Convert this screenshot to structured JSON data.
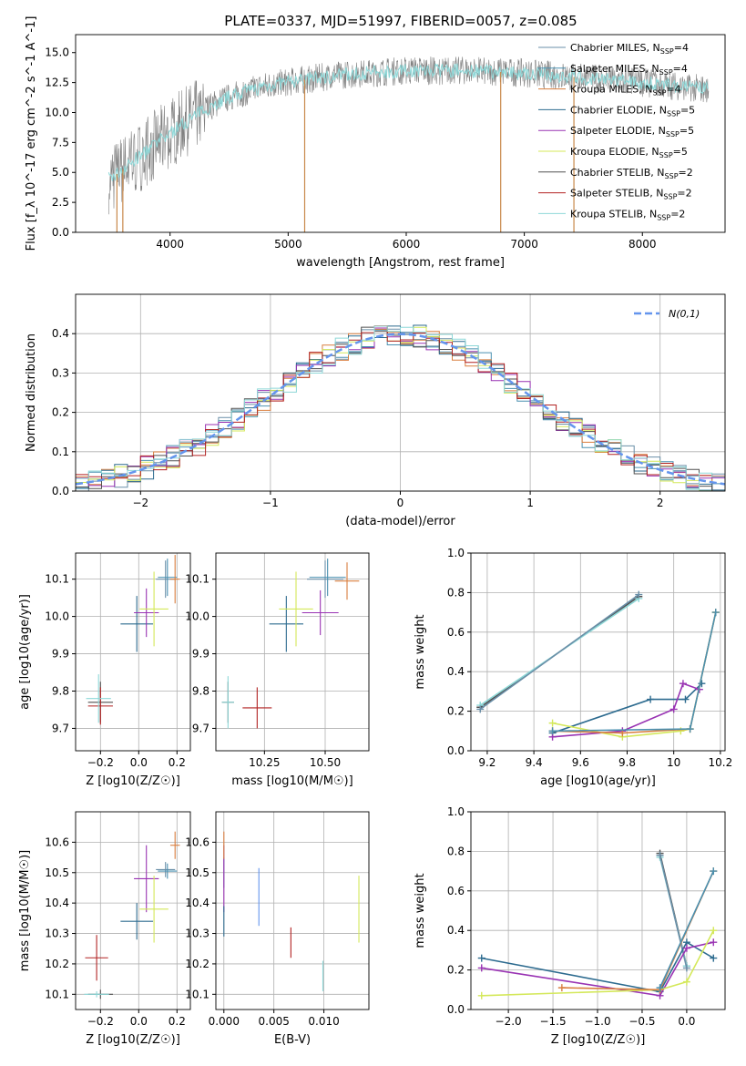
{
  "figure_title": "PLATE=0337, MJD=51997, FIBERID=0057, z=0.085",
  "colors": {
    "Chabrier MILES": "#6a8fa8",
    "Salpeter MILES": "#4a90b0",
    "Kroupa MILES": "#d97f3f",
    "Chabrier ELODIE": "#2d6b8f",
    "Salpeter ELODIE": "#9933b3",
    "Kroupa ELODIE": "#d4e85a",
    "Chabrier STELIB": "#505050",
    "Salpeter STELIB": "#b22222",
    "Kroupa STELIB": "#8ed8d8",
    "normal": "#6495ED",
    "spectrum": "#808080"
  },
  "chart_data": [
    {
      "id": "spectrum",
      "type": "line",
      "title": "PLATE=0337, MJD=51997, FIBERID=0057, z=0.085",
      "xlabel": "wavelength [Angstrom, rest frame]",
      "ylabel": "Flux [f_λ 10^-17 erg cm^-2 s^-1 A^-1]",
      "xlim": [
        3200,
        8700
      ],
      "ylim": [
        0,
        16.5
      ],
      "xticks": [
        4000,
        5000,
        6000,
        7000,
        8000
      ],
      "yticks": [
        0.0,
        2.5,
        5.0,
        7.5,
        10.0,
        12.5,
        15.0
      ],
      "legend": [
        {
          "name": "Chabrier MILES",
          "sub": "SSP",
          "n": "4"
        },
        {
          "name": "Salpeter MILES",
          "sub": "SSP",
          "n": "4"
        },
        {
          "name": "Kroupa MILES",
          "sub": "SSP",
          "n": "4"
        },
        {
          "name": "Chabrier ELODIE",
          "sub": "SSP",
          "n": "5"
        },
        {
          "name": "Salpeter ELODIE",
          "sub": "SSP",
          "n": "5"
        },
        {
          "name": "Kroupa ELODIE",
          "sub": "SSP",
          "n": "5"
        },
        {
          "name": "Chabrier STELIB",
          "sub": "SSP",
          "n": "2"
        },
        {
          "name": "Salpeter STELIB",
          "sub": "SSP",
          "n": "2"
        },
        {
          "name": "Kroupa STELIB",
          "sub": "SSP",
          "n": "2"
        }
      ],
      "continuum": [
        [
          3500,
          4.5
        ],
        [
          3700,
          6.0
        ],
        [
          3900,
          7.5
        ],
        [
          4100,
          9.0
        ],
        [
          4300,
          10.3
        ],
        [
          4500,
          11.3
        ],
        [
          4800,
          12.2
        ],
        [
          5100,
          12.7
        ],
        [
          5500,
          13.2
        ],
        [
          6000,
          13.5
        ],
        [
          6500,
          13.5
        ],
        [
          7000,
          13.3
        ],
        [
          7500,
          12.9
        ],
        [
          8000,
          12.5
        ],
        [
          8500,
          12.0
        ]
      ],
      "dips": [
        [
          5140,
          0
        ],
        [
          6800,
          0
        ],
        [
          7420,
          0
        ],
        [
          3550,
          0
        ],
        [
          3600,
          0
        ]
      ]
    },
    {
      "id": "residuals",
      "type": "bar",
      "xlabel": "(data-model)/error",
      "ylabel": "Normed distribution",
      "xlim": [
        -2.5,
        2.5
      ],
      "ylim": [
        0,
        0.5
      ],
      "xticks": [
        -2,
        -1,
        0,
        1,
        2
      ],
      "yticks": [
        0.0,
        0.1,
        0.2,
        0.3,
        0.4
      ],
      "legend_label": "N(0,1)",
      "bin_width": 0.1
    },
    {
      "id": "age_vs_Z",
      "type": "scatter",
      "xlabel": "Z [log10(Z/Z☉)]",
      "ylabel": "age [log10(age/yr)]",
      "xlim": [
        -0.33,
        0.27
      ],
      "ylim": [
        9.64,
        10.17
      ],
      "xticks": [
        -0.2,
        0.0,
        0.2
      ],
      "xticklabels": [
        "−0.2",
        "0.0",
        "0.2"
      ],
      "yticks": [
        9.7,
        9.8,
        9.9,
        10.0,
        10.1
      ],
      "points": [
        {
          "m": "Chabrier MILES",
          "x": 0.14,
          "y": 10.1,
          "dx": 0.1,
          "dy": 0.1
        },
        {
          "m": "Salpeter MILES",
          "x": 0.15,
          "y": 10.105,
          "dx": 0.1,
          "dy": 0.1
        },
        {
          "m": "Kroupa MILES",
          "x": 0.19,
          "y": 10.1,
          "dx": 0.05,
          "dy": 0.13
        },
        {
          "m": "Chabrier ELODIE",
          "x": -0.01,
          "y": 9.98,
          "dx": 0.17,
          "dy": 0.15
        },
        {
          "m": "Salpeter ELODIE",
          "x": 0.04,
          "y": 10.01,
          "dx": 0.13,
          "dy": 0.13
        },
        {
          "m": "Kroupa ELODIE",
          "x": 0.08,
          "y": 10.02,
          "dx": 0.15,
          "dy": 0.2
        },
        {
          "m": "Chabrier STELIB",
          "x": -0.2,
          "y": 9.77,
          "dx": 0.13,
          "dy": 0.11
        },
        {
          "m": "Salpeter STELIB",
          "x": -0.2,
          "y": 9.76,
          "dx": 0.13,
          "dy": 0.1
        },
        {
          "m": "Kroupa STELIB",
          "x": -0.21,
          "y": 9.78,
          "dx": 0.13,
          "dy": 0.13
        }
      ]
    },
    {
      "id": "age_vs_mass",
      "type": "scatter",
      "xlabel": "mass [log10(M/M☉)]",
      "ylabel": "",
      "xlim": [
        10.05,
        10.68
      ],
      "ylim": [
        9.64,
        10.17
      ],
      "xticks": [
        10.25,
        10.5
      ],
      "xticklabels": [
        "10.25",
        "10.50"
      ],
      "yticks": [
        9.7,
        9.8,
        9.9,
        10.0,
        10.1
      ],
      "points": [
        {
          "m": "Chabrier MILES",
          "x": 10.5,
          "y": 10.1,
          "dx": 0.15,
          "dy": 0.1
        },
        {
          "m": "Salpeter MILES",
          "x": 10.51,
          "y": 10.105,
          "dx": 0.15,
          "dy": 0.1
        },
        {
          "m": "Kroupa MILES",
          "x": 10.59,
          "y": 10.095,
          "dx": 0.1,
          "dy": 0.1
        },
        {
          "m": "Chabrier ELODIE",
          "x": 10.34,
          "y": 9.98,
          "dx": 0.14,
          "dy": 0.15
        },
        {
          "m": "Salpeter ELODIE",
          "x": 10.48,
          "y": 10.01,
          "dx": 0.15,
          "dy": 0.12
        },
        {
          "m": "Kroupa ELODIE",
          "x": 10.38,
          "y": 10.02,
          "dx": 0.14,
          "dy": 0.2
        },
        {
          "m": "Chabrier STELIB",
          "x": 10.1,
          "y": 9.77,
          "dx": 0.05,
          "dy": 0.11
        },
        {
          "m": "Salpeter STELIB",
          "x": 10.22,
          "y": 9.755,
          "dx": 0.12,
          "dy": 0.11
        },
        {
          "m": "Kroupa STELIB",
          "x": 10.1,
          "y": 9.77,
          "dx": 0.05,
          "dy": 0.14
        }
      ]
    },
    {
      "id": "massweight_vs_age",
      "type": "line",
      "xlabel": "age [log10(age/yr)]",
      "ylabel": "mass weight",
      "xlim": [
        9.13,
        10.22
      ],
      "ylim": [
        0,
        1.0
      ],
      "xticks": [
        9.2,
        9.4,
        9.6,
        9.8,
        10.0,
        10.2
      ],
      "yticks": [
        0.0,
        0.2,
        0.4,
        0.6,
        0.8,
        1.0
      ],
      "series": [
        {
          "m": "Chabrier STELIB",
          "x": [
            9.17,
            9.85
          ],
          "y": [
            0.22,
            0.78
          ]
        },
        {
          "m": "Kroupa STELIB",
          "x": [
            9.17,
            9.85
          ],
          "y": [
            0.23,
            0.77
          ]
        },
        {
          "m": "Chabrier MILES",
          "x": [
            9.17,
            9.85
          ],
          "y": [
            0.21,
            0.79
          ]
        },
        {
          "m": "Chabrier ELODIE",
          "x": [
            9.48,
            9.9,
            10.05,
            10.12
          ],
          "y": [
            0.09,
            0.26,
            0.26,
            0.34
          ]
        },
        {
          "m": "Salpeter ELODIE",
          "x": [
            9.48,
            9.78,
            10.0,
            10.04,
            10.11
          ],
          "y": [
            0.07,
            0.1,
            0.21,
            0.34,
            0.31
          ]
        },
        {
          "m": "Kroupa ELODIE",
          "x": [
            9.48,
            9.78,
            10.03,
            10.07,
            10.18
          ],
          "y": [
            0.14,
            0.07,
            0.1,
            0.11,
            0.7
          ]
        },
        {
          "m": "Kroupa MILES",
          "x": [
            9.48,
            9.78,
            10.07,
            10.18
          ],
          "y": [
            0.1,
            0.09,
            0.11,
            0.7
          ]
        },
        {
          "m": "Salpeter MILES",
          "x": [
            9.48,
            10.07,
            10.18
          ],
          "y": [
            0.1,
            0.11,
            0.7
          ]
        }
      ]
    },
    {
      "id": "mass_vs_Z",
      "type": "scatter",
      "xlabel": "Z [log10(Z/Z☉)]",
      "ylabel": "mass [log10(M/M☉)]",
      "xlim": [
        -0.33,
        0.27
      ],
      "ylim": [
        10.05,
        10.7
      ],
      "xticks": [
        -0.2,
        0.0,
        0.2
      ],
      "xticklabels": [
        "−0.2",
        "0.0",
        "0.2"
      ],
      "yticks": [
        10.1,
        10.2,
        10.3,
        10.4,
        10.5,
        10.6
      ],
      "points": [
        {
          "m": "Chabrier MILES",
          "x": 0.14,
          "y": 10.51,
          "dx": 0.1,
          "dy": 0.05
        },
        {
          "m": "Salpeter MILES",
          "x": 0.15,
          "y": 10.505,
          "dx": 0.1,
          "dy": 0.05
        },
        {
          "m": "Kroupa MILES",
          "x": 0.19,
          "y": 10.59,
          "dx": 0.05,
          "dy": 0.09
        },
        {
          "m": "Chabrier ELODIE",
          "x": -0.01,
          "y": 10.34,
          "dx": 0.17,
          "dy": 0.12
        },
        {
          "m": "Salpeter ELODIE",
          "x": 0.04,
          "y": 10.48,
          "dx": 0.13,
          "dy": 0.22
        },
        {
          "m": "Kroupa ELODIE",
          "x": 0.08,
          "y": 10.38,
          "dx": 0.15,
          "dy": 0.22
        },
        {
          "m": "Chabrier STELIB",
          "x": -0.2,
          "y": 10.1,
          "dx": 0.13,
          "dy": 0.03
        },
        {
          "m": "Salpeter STELIB",
          "x": -0.22,
          "y": 10.22,
          "dx": 0.12,
          "dy": 0.15
        },
        {
          "m": "Kroupa STELIB",
          "x": -0.22,
          "y": 10.1,
          "dx": 0.13,
          "dy": 0.02
        }
      ]
    },
    {
      "id": "mass_vs_ebv",
      "type": "scatter",
      "xlabel": "E(B-V)",
      "ylabel": "",
      "xlim": [
        -0.0008,
        0.0145
      ],
      "ylim": [
        10.05,
        10.7
      ],
      "xticks": [
        0.0,
        0.005,
        0.01
      ],
      "xticklabels": [
        "0.000",
        "0.005",
        "0.010"
      ],
      "yticks": [
        10.1,
        10.2,
        10.3,
        10.4,
        10.5,
        10.6
      ],
      "points": [
        {
          "m": "Chabrier MILES",
          "x": 0.0,
          "y": 10.5,
          "dx": 0,
          "dy": 0.1
        },
        {
          "m": "Salpeter ELODIE",
          "x": 0.0,
          "y": 10.48,
          "dx": 0,
          "dy": 0.22
        },
        {
          "m": "Kroupa MILES",
          "x": 0.0,
          "y": 10.59,
          "dx": 0,
          "dy": 0.09
        },
        {
          "m": "Chabrier ELODIE",
          "x": 0.0,
          "y": 10.34,
          "dx": 0,
          "dy": 0.1
        },
        {
          "m": "normal",
          "x": 0.0035,
          "y": 10.42,
          "dx": 0,
          "dy": 0.19
        },
        {
          "m": "Salpeter STELIB",
          "x": 0.0067,
          "y": 10.27,
          "dx": 0,
          "dy": 0.1
        },
        {
          "m": "Kroupa STELIB",
          "x": 0.0099,
          "y": 10.16,
          "dx": 0,
          "dy": 0.1
        },
        {
          "m": "Kroupa ELODIE",
          "x": 0.0135,
          "y": 10.38,
          "dx": 0,
          "dy": 0.22
        }
      ]
    },
    {
      "id": "massweight_vs_Z",
      "type": "line",
      "xlabel": "Z [log10(Z/Z☉)]",
      "ylabel": "mass weight",
      "xlim": [
        -2.42,
        0.43
      ],
      "ylim": [
        0,
        1.0
      ],
      "xticks": [
        -2.0,
        -1.5,
        -1.0,
        -0.5,
        0.0
      ],
      "xticklabels": [
        "−2.0",
        "−1.5",
        "−1.0",
        "−0.5",
        "0.0"
      ],
      "yticks": [
        0.0,
        0.2,
        0.4,
        0.6,
        0.8,
        1.0
      ],
      "series": [
        {
          "m": "Chabrier STELIB",
          "x": [
            -0.3,
            0.0
          ],
          "y": [
            0.79,
            0.22
          ]
        },
        {
          "m": "Kroupa STELIB",
          "x": [
            -0.3,
            0.0
          ],
          "y": [
            0.77,
            0.22
          ]
        },
        {
          "m": "Chabrier MILES",
          "x": [
            -0.3,
            0.0
          ],
          "y": [
            0.78,
            0.21
          ]
        },
        {
          "m": "Chabrier ELODIE",
          "x": [
            -2.3,
            -0.3,
            0.0,
            0.3
          ],
          "y": [
            0.26,
            0.09,
            0.34,
            0.26
          ]
        },
        {
          "m": "Salpeter ELODIE",
          "x": [
            -2.3,
            -0.3,
            0.0,
            0.3
          ],
          "y": [
            0.21,
            0.07,
            0.31,
            0.34
          ]
        },
        {
          "m": "Kroupa ELODIE",
          "x": [
            -2.3,
            -0.3,
            0.0,
            0.3
          ],
          "y": [
            0.07,
            0.1,
            0.14,
            0.4
          ]
        },
        {
          "m": "Kroupa MILES",
          "x": [
            -1.4,
            -0.3,
            0.3
          ],
          "y": [
            0.11,
            0.1,
            0.7
          ]
        },
        {
          "m": "Salpeter MILES",
          "x": [
            -0.3,
            0.3
          ],
          "y": [
            0.11,
            0.7
          ]
        }
      ]
    }
  ]
}
